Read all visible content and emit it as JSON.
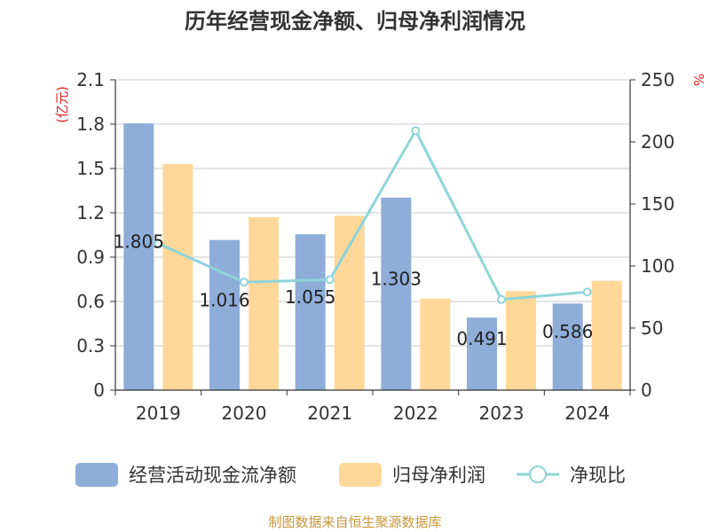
{
  "chart_data": {
    "type": "bar",
    "title": "历年经营现金净额、归母净利润情况",
    "left_axis_unit": "(亿元)",
    "right_axis_unit": "%",
    "categories": [
      "2019",
      "2020",
      "2021",
      "2022",
      "2023",
      "2024"
    ],
    "left_ylim": [
      0,
      2.1
    ],
    "left_ticks": [
      "0",
      "0.3",
      "0.6",
      "0.9",
      "1.2",
      "1.5",
      "1.8",
      "2.1"
    ],
    "right_ylim": [
      0,
      250
    ],
    "right_ticks": [
      "0",
      "50",
      "100",
      "150",
      "200",
      "250"
    ],
    "grid": true,
    "legend_position": "bottom",
    "series": [
      {
        "name": "经营活动现金流净额",
        "kind": "bar",
        "axis": "left",
        "color": "#8EADD9",
        "values": [
          1.805,
          1.016,
          1.055,
          1.303,
          0.491,
          0.586
        ],
        "labels": [
          "1.805",
          "1.016",
          "1.055",
          "1.303",
          "0.491",
          "0.586"
        ]
      },
      {
        "name": "归母净利润",
        "kind": "bar",
        "axis": "left",
        "color": "#FFD899",
        "values": [
          1.53,
          1.17,
          1.18,
          0.62,
          0.67,
          0.74
        ]
      },
      {
        "name": "净现比",
        "kind": "line",
        "axis": "right",
        "color": "#8ED4D9",
        "values": [
          118,
          87,
          89,
          209,
          73,
          79
        ]
      }
    ]
  },
  "footer": "制图数据来自恒生聚源数据库"
}
